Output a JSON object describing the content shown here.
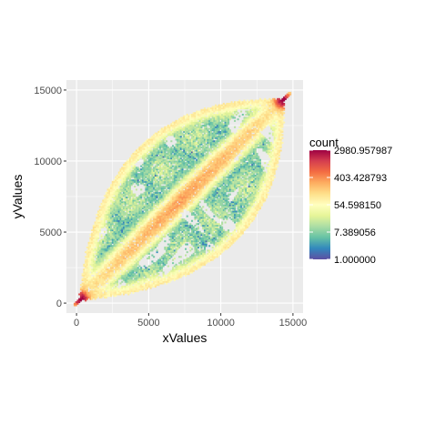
{
  "chart_data": {
    "type": "heatmap",
    "title": "",
    "xlabel": "xValues",
    "ylabel": "yValues",
    "xlim": [
      -700,
      15700
    ],
    "ylim": [
      -700,
      15700
    ],
    "x_ticks": [
      0,
      5000,
      10000,
      15000
    ],
    "y_ticks": [
      0,
      5000,
      10000,
      15000
    ],
    "x_tick_labels": [
      "0",
      "5000",
      "10000",
      "15000"
    ],
    "y_tick_labels": [
      "0",
      "5000",
      "10000",
      "15000"
    ],
    "grid": true,
    "panel_background": "#EBEBEB",
    "legend": {
      "title": "count",
      "position": "right",
      "scale": "log",
      "range": [
        1.0,
        2980.957987
      ],
      "breaks": [
        1.0,
        7.389056,
        54.59815,
        403.428793,
        2980.957987
      ],
      "labels": [
        "1.000000",
        "7.389056",
        "54.598150",
        "403.428793",
        "2980.957987"
      ],
      "colors": [
        "#5E4FA2",
        "#3288BD",
        "#66C2A5",
        "#ABDDA4",
        "#E6F598",
        "#FFFFBF",
        "#FEE08B",
        "#FDAE61",
        "#F46D43",
        "#D53E4F",
        "#9E0142"
      ]
    },
    "data_extent": {
      "x": [
        0,
        14500
      ],
      "y": [
        0,
        14500
      ]
    },
    "features": [
      {
        "kind": "diagonal",
        "from": [
          300,
          300
        ],
        "to": [
          14300,
          14300
        ],
        "peak_count": 2980.957987
      },
      {
        "kind": "upper_arc",
        "from": [
          300,
          300
        ],
        "control": [
          1500,
          14500
        ],
        "to": [
          14300,
          14300
        ]
      },
      {
        "kind": "lower_arc",
        "from": [
          300,
          300
        ],
        "control": [
          14500,
          1500
        ],
        "to": [
          14300,
          14300
        ]
      },
      {
        "kind": "hotspot",
        "center": [
          300,
          300
        ],
        "count": 2980.957987
      },
      {
        "kind": "hotspot",
        "center": [
          14300,
          14300
        ],
        "count": 2980.957987
      }
    ]
  }
}
